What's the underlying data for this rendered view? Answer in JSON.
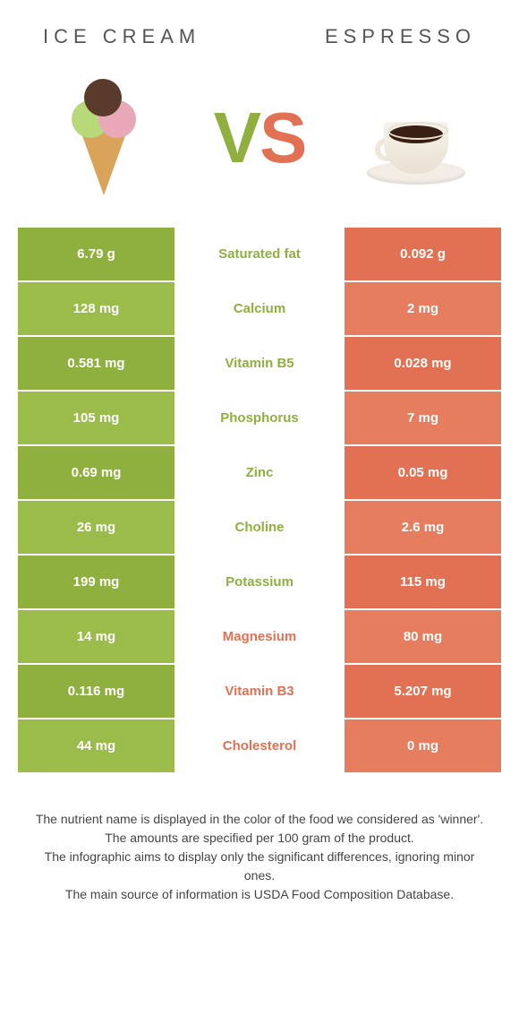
{
  "header": {
    "left_title": "Ice Cream",
    "right_title": "Espresso"
  },
  "vs": {
    "v": "V",
    "s": "S"
  },
  "colors": {
    "left": "#8fb03e",
    "left_alt": "#9bbb4a",
    "right": "#e27052",
    "right_alt": "#e67d5e",
    "mid_left_text": "#8fb03e",
    "mid_right_text": "#e27052"
  },
  "rows": [
    {
      "left": "6.79 g",
      "label": "Saturated fat",
      "right": "0.092 g",
      "winner": "left"
    },
    {
      "left": "128 mg",
      "label": "Calcium",
      "right": "2 mg",
      "winner": "left"
    },
    {
      "left": "0.581 mg",
      "label": "Vitamin B5",
      "right": "0.028 mg",
      "winner": "left"
    },
    {
      "left": "105 mg",
      "label": "Phosphorus",
      "right": "7 mg",
      "winner": "left"
    },
    {
      "left": "0.69 mg",
      "label": "Zinc",
      "right": "0.05 mg",
      "winner": "left"
    },
    {
      "left": "26 mg",
      "label": "Choline",
      "right": "2.6 mg",
      "winner": "left"
    },
    {
      "left": "199 mg",
      "label": "Potassium",
      "right": "115 mg",
      "winner": "left"
    },
    {
      "left": "14 mg",
      "label": "Magnesium",
      "right": "80 mg",
      "winner": "right"
    },
    {
      "left": "0.116 mg",
      "label": "Vitamin B3",
      "right": "5.207 mg",
      "winner": "right"
    },
    {
      "left": "44 mg",
      "label": "Cholesterol",
      "right": "0 mg",
      "winner": "right"
    }
  ],
  "footer": {
    "line1": "The nutrient name is displayed in the color of the food we considered as 'winner'.",
    "line2": "The amounts are specified per 100 gram of the product.",
    "line3": "The infographic aims to display only the significant differences, ignoring minor ones.",
    "line4": "The main source of information is USDA Food Composition Database."
  }
}
